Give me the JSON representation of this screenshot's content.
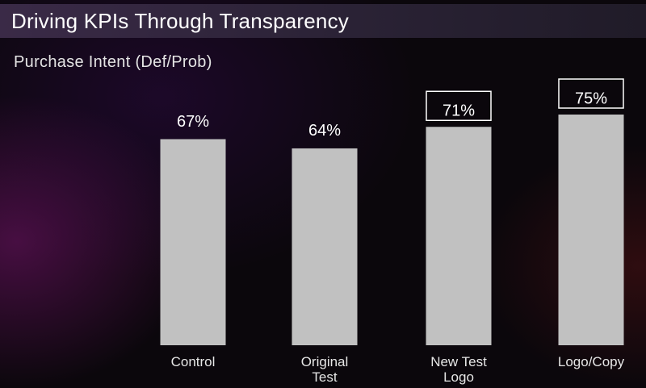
{
  "slide": {
    "title": "Driving KPIs Through Transparency",
    "subtitle": "Purchase Intent (Def/Prob)"
  },
  "colors": {
    "bar": "#c1c1c1",
    "text": "#ffffff",
    "label_box_border": "#ffffff"
  },
  "chart_data": {
    "type": "bar",
    "title": "Purchase Intent (Def/Prob)",
    "xlabel": "",
    "ylabel": "",
    "ylim": [
      0,
      100
    ],
    "grid": false,
    "categories": [
      [
        "Control"
      ],
      [
        "Original",
        "Test"
      ],
      [
        "New Test",
        "Logo"
      ],
      [
        "Logo/Copy"
      ]
    ],
    "values": [
      67,
      64,
      71,
      75
    ],
    "data_labels": [
      "67%",
      "64%",
      "71%",
      "75%"
    ],
    "highlighted_labels": [
      false,
      false,
      true,
      true
    ]
  }
}
